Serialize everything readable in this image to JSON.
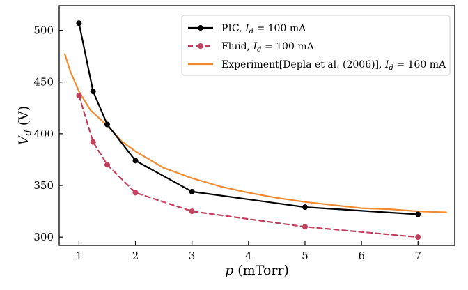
{
  "chart_data": {
    "type": "line",
    "title": "",
    "xlabel": "p (mTorr)",
    "ylabel": "V_d (V)",
    "xlim": [
      0.65,
      7.65
    ],
    "ylim": [
      292,
      524
    ],
    "xticks": [
      1,
      2,
      3,
      4,
      5,
      6,
      7
    ],
    "yticks": [
      300,
      350,
      400,
      450,
      500
    ],
    "grid": false,
    "legend_position": "top-right",
    "series": [
      {
        "name": "PIC, I_d = 100 mA",
        "label_prefix": "PIC, ",
        "label_suffix": " = 100 mA",
        "color": "#000000",
        "style": "solid",
        "markers": true,
        "x": [
          1,
          1.25,
          1.5,
          2,
          3,
          5,
          7
        ],
        "y": [
          507,
          441,
          409,
          374,
          344,
          329,
          322
        ]
      },
      {
        "name": "Fluid, I_d = 100 mA",
        "label_prefix": "Fluid, ",
        "label_suffix": " = 100 mA",
        "color": "#c0405e",
        "style": "dashed",
        "markers": true,
        "x": [
          1,
          1.25,
          1.5,
          2,
          3,
          5,
          7
        ],
        "y": [
          437,
          392,
          370,
          343,
          325,
          310,
          300
        ]
      },
      {
        "name": "Experiment[Depla et al. (2006)], I_d = 160 mA",
        "label_prefix": "Experiment[Depla et al. (2006)], ",
        "label_suffix": " = 160 mA",
        "color": "#f28a30",
        "style": "solid",
        "markers": false,
        "x": [
          0.75,
          0.85,
          1.0,
          1.2,
          1.5,
          1.75,
          2.0,
          2.5,
          3.0,
          3.5,
          4.0,
          4.5,
          5.0,
          5.5,
          6.0,
          6.5,
          7.0,
          7.5
        ],
        "y": [
          477,
          460,
          441,
          423,
          408,
          393,
          383,
          367,
          357,
          349,
          343,
          338,
          334,
          331,
          328,
          327,
          325,
          324
        ]
      }
    ]
  }
}
